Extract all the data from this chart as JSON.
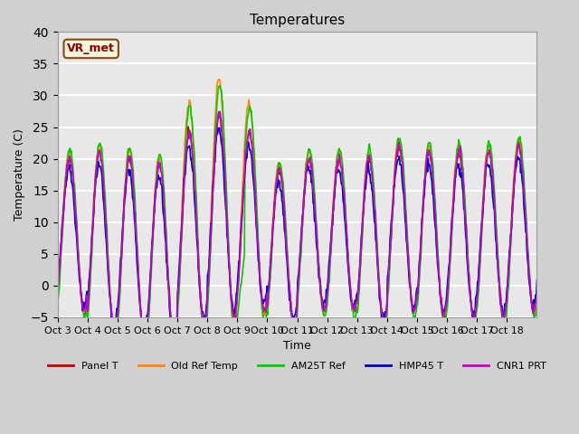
{
  "title": "Temperatures",
  "xlabel": "Time",
  "ylabel": "Temperature (C)",
  "ylim": [
    -5,
    40
  ],
  "yticks": [
    -5,
    0,
    5,
    10,
    15,
    20,
    25,
    30,
    35,
    40
  ],
  "annotation": "VR_met",
  "x_tick_labels": [
    "Oct 3",
    "Oct 4",
    "Oct 5",
    "Oct 6",
    "Oct 7",
    "Oct 8",
    "Oct 9",
    "Oct 10",
    "Oct 11",
    "Oct 12",
    "Oct 13",
    "Oct 14",
    "Oct 15",
    "Oct 16",
    "Oct 17",
    "Oct 18"
  ],
  "series_colors": {
    "Panel T": "#cc0000",
    "Old Ref Temp": "#ff8800",
    "AM25T Ref": "#00cc00",
    "HMP45 T": "#0000cc",
    "CNR1 PRT": "#cc00cc"
  },
  "linewidth": 1.2,
  "fig_facecolor": "#d0d0d0",
  "ax_facecolor": "#e8e8e8",
  "annotation_text_color": "#8B0000",
  "annotation_box_color": "#f5f5dc",
  "annotation_edge_color": "#8B4513"
}
